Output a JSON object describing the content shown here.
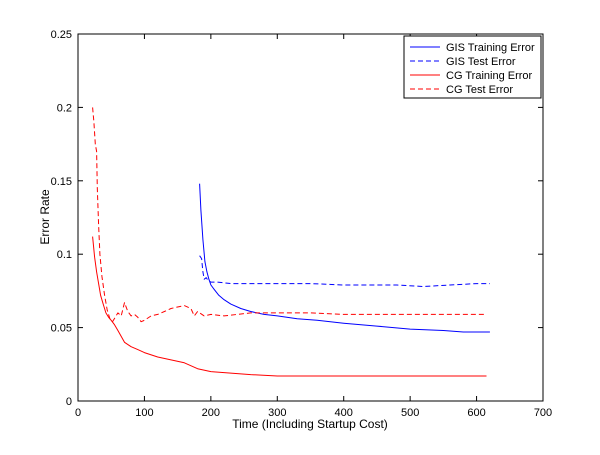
{
  "chart_data": {
    "type": "line",
    "xlabel": "Time (Including Startup Cost)",
    "ylabel": "Error Rate",
    "xlim": [
      0,
      700
    ],
    "ylim": [
      0,
      0.25
    ],
    "xticks": [
      0,
      100,
      200,
      300,
      400,
      500,
      600,
      700
    ],
    "xtick_labels": [
      "0",
      "100",
      "200",
      "300",
      "400",
      "500",
      "600",
      "700"
    ],
    "yticks": [
      0,
      0.05,
      0.1,
      0.15,
      0.2,
      0.25
    ],
    "ytick_labels": [
      "0",
      "0.05",
      "0.1",
      "0.15",
      "0.2",
      "0.25"
    ],
    "grid": false,
    "legend_position": "top-right",
    "series": [
      {
        "name": "GIS Training Error",
        "color": "#0000ff",
        "dash": "solid",
        "points": [
          [
            183,
            0.148
          ],
          [
            185,
            0.13
          ],
          [
            188,
            0.11
          ],
          [
            191,
            0.095
          ],
          [
            194,
            0.088
          ],
          [
            197,
            0.083
          ],
          [
            200,
            0.079
          ],
          [
            205,
            0.076
          ],
          [
            212,
            0.072
          ],
          [
            220,
            0.069
          ],
          [
            230,
            0.066
          ],
          [
            245,
            0.063
          ],
          [
            260,
            0.061
          ],
          [
            280,
            0.059
          ],
          [
            300,
            0.058
          ],
          [
            330,
            0.056
          ],
          [
            360,
            0.055
          ],
          [
            400,
            0.053
          ],
          [
            450,
            0.051
          ],
          [
            500,
            0.049
          ],
          [
            550,
            0.048
          ],
          [
            580,
            0.047
          ],
          [
            620,
            0.047
          ]
        ]
      },
      {
        "name": "GIS Test Error",
        "color": "#0000ff",
        "dash": "dashed",
        "points": [
          [
            183,
            0.099
          ],
          [
            186,
            0.097
          ],
          [
            188,
            0.088
          ],
          [
            190,
            0.083
          ],
          [
            193,
            0.084
          ],
          [
            196,
            0.082
          ],
          [
            200,
            0.081
          ],
          [
            210,
            0.081
          ],
          [
            230,
            0.08
          ],
          [
            260,
            0.08
          ],
          [
            300,
            0.08
          ],
          [
            350,
            0.08
          ],
          [
            400,
            0.079
          ],
          [
            450,
            0.079
          ],
          [
            480,
            0.079
          ],
          [
            520,
            0.078
          ],
          [
            560,
            0.079
          ],
          [
            600,
            0.08
          ],
          [
            620,
            0.08
          ]
        ]
      },
      {
        "name": "CG Training Error",
        "color": "#ff0000",
        "dash": "solid",
        "points": [
          [
            22,
            0.112
          ],
          [
            25,
            0.098
          ],
          [
            28,
            0.088
          ],
          [
            31,
            0.08
          ],
          [
            34,
            0.072
          ],
          [
            38,
            0.066
          ],
          [
            42,
            0.06
          ],
          [
            46,
            0.057
          ],
          [
            50,
            0.055
          ],
          [
            55,
            0.052
          ],
          [
            60,
            0.048
          ],
          [
            65,
            0.044
          ],
          [
            70,
            0.04
          ],
          [
            80,
            0.037
          ],
          [
            90,
            0.035
          ],
          [
            100,
            0.033
          ],
          [
            120,
            0.03
          ],
          [
            140,
            0.028
          ],
          [
            160,
            0.026
          ],
          [
            180,
            0.022
          ],
          [
            200,
            0.02
          ],
          [
            230,
            0.019
          ],
          [
            260,
            0.018
          ],
          [
            300,
            0.017
          ],
          [
            350,
            0.017
          ],
          [
            400,
            0.017
          ],
          [
            500,
            0.017
          ],
          [
            560,
            0.017
          ],
          [
            615,
            0.017
          ]
        ]
      },
      {
        "name": "CG Test Error",
        "color": "#ff0000",
        "dash": "dashed",
        "points": [
          [
            22,
            0.2
          ],
          [
            24,
            0.19
          ],
          [
            26,
            0.175
          ],
          [
            28,
            0.17
          ],
          [
            29,
            0.145
          ],
          [
            31,
            0.12
          ],
          [
            33,
            0.1
          ],
          [
            36,
            0.085
          ],
          [
            40,
            0.072
          ],
          [
            44,
            0.062
          ],
          [
            48,
            0.056
          ],
          [
            52,
            0.054
          ],
          [
            56,
            0.057
          ],
          [
            60,
            0.06
          ],
          [
            65,
            0.058
          ],
          [
            70,
            0.067
          ],
          [
            75,
            0.061
          ],
          [
            80,
            0.058
          ],
          [
            85,
            0.059
          ],
          [
            90,
            0.057
          ],
          [
            95,
            0.054
          ],
          [
            100,
            0.055
          ],
          [
            110,
            0.058
          ],
          [
            120,
            0.059
          ],
          [
            130,
            0.061
          ],
          [
            140,
            0.063
          ],
          [
            150,
            0.064
          ],
          [
            160,
            0.065
          ],
          [
            170,
            0.063
          ],
          [
            175,
            0.058
          ],
          [
            180,
            0.061
          ],
          [
            190,
            0.058
          ],
          [
            200,
            0.059
          ],
          [
            220,
            0.058
          ],
          [
            240,
            0.059
          ],
          [
            260,
            0.06
          ],
          [
            300,
            0.06
          ],
          [
            350,
            0.06
          ],
          [
            400,
            0.059
          ],
          [
            450,
            0.059
          ],
          [
            500,
            0.059
          ],
          [
            550,
            0.059
          ],
          [
            615,
            0.059
          ]
        ]
      }
    ]
  }
}
